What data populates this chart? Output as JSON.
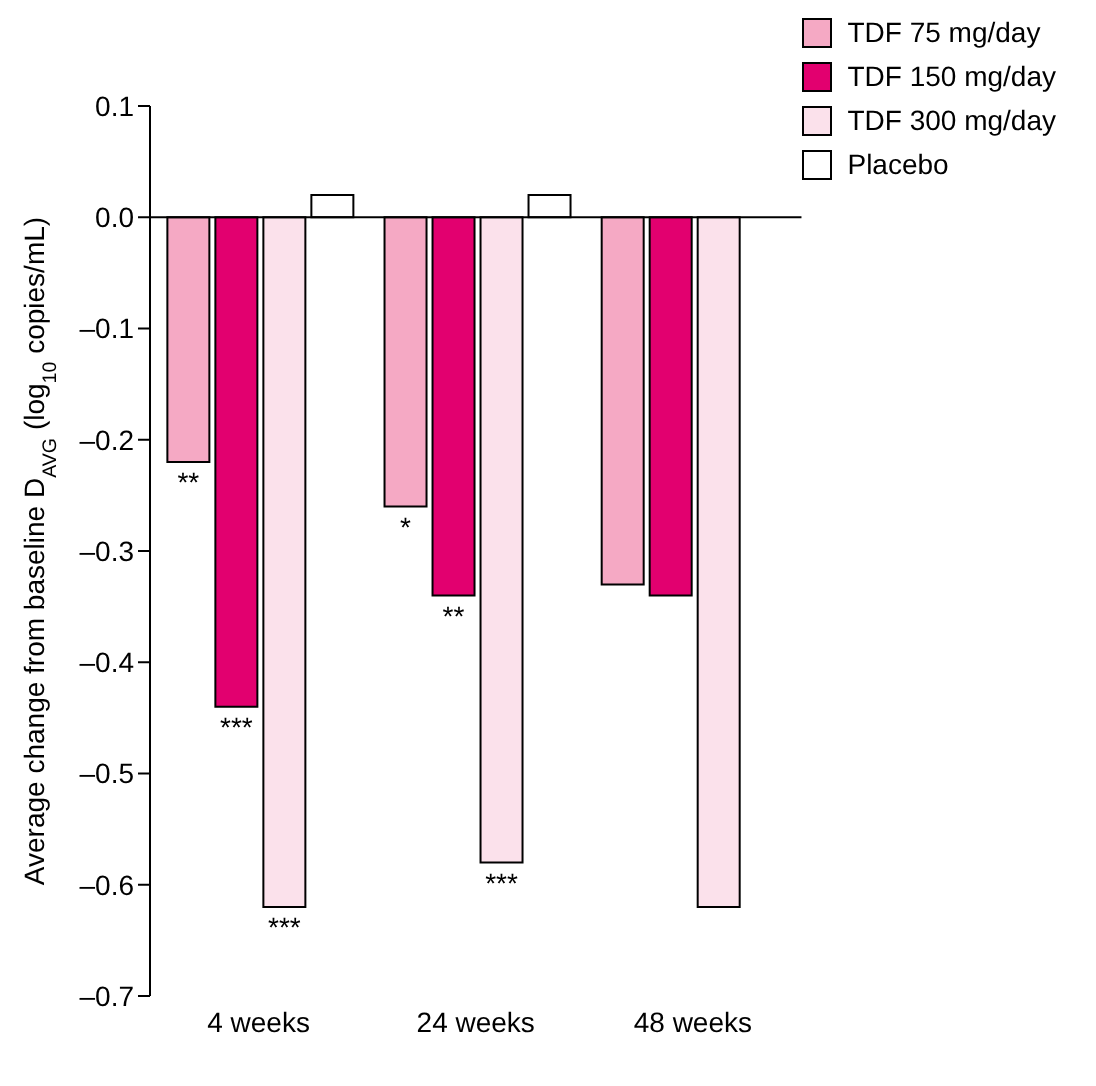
{
  "chart_data": {
    "type": "bar",
    "ylabel": "Average change from baseline D$_{AVG}$ (log$_{10}$ copies/mL)",
    "categories": [
      "4 weeks",
      "24 weeks",
      "48 weeks"
    ],
    "series": [
      {
        "name": "TDF 75 mg/day",
        "color": "#f5a9c4",
        "values": [
          -0.22,
          -0.26,
          -0.33
        ],
        "value_labels": [
          "**",
          "*",
          null
        ]
      },
      {
        "name": "TDF 150 mg/day",
        "color": "#e2006f",
        "values": [
          -0.44,
          -0.34,
          -0.34
        ],
        "value_labels": [
          "***",
          "**",
          null
        ]
      },
      {
        "name": "TDF 300 mg/day",
        "color": "#fbe1eb",
        "values": [
          -0.62,
          -0.58,
          -0.62
        ],
        "value_labels": [
          "***",
          "***",
          null
        ]
      },
      {
        "name": "Placebo",
        "color": "#ffffff",
        "values": [
          0.02,
          0.02,
          null
        ]
      }
    ],
    "ylim": [
      -0.7,
      0.1
    ],
    "yticks": [
      0.1,
      {
        "value": 0,
        "label": "0.0"
      },
      {
        "value": -0.1,
        "label": "–0.1"
      },
      {
        "value": -0.2,
        "label": "–0.2"
      },
      {
        "value": -0.3,
        "label": "–0.3"
      },
      {
        "value": -0.4,
        "label": "–0.4"
      },
      {
        "value": -0.5,
        "label": "–0.5"
      },
      {
        "value": -0.6,
        "label": "–0.6"
      },
      {
        "value": -0.7,
        "label": "–0.7"
      }
    ],
    "ref_lines": [
      {
        "axis": "y",
        "value": 0
      }
    ],
    "grid": false,
    "legend": "top right"
  }
}
